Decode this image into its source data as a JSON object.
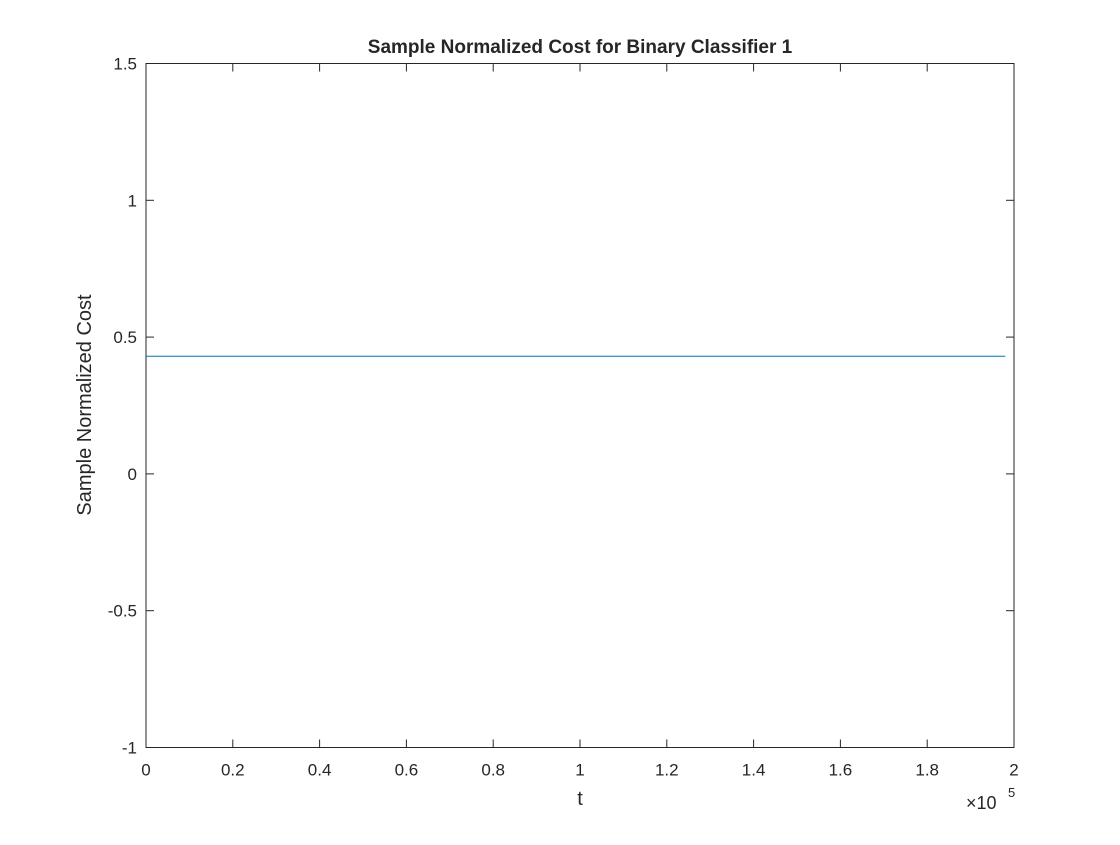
{
  "chart_data": {
    "type": "line",
    "title": "Sample Normalized Cost for Binary Classifier 1",
    "xlabel": "t",
    "ylabel": "Sample Normalized Cost",
    "x_exponent_base": "×10",
    "x_exponent_power": "5",
    "xlim": [
      0,
      200000
    ],
    "ylim": [
      -1,
      1.5
    ],
    "xticks": [
      0,
      20000,
      40000,
      60000,
      80000,
      100000,
      120000,
      140000,
      160000,
      180000,
      200000
    ],
    "xtick_labels": [
      "0",
      "0.2",
      "0.4",
      "0.6",
      "0.8",
      "1",
      "1.2",
      "1.4",
      "1.6",
      "1.8",
      "2"
    ],
    "yticks": [
      -1,
      -0.5,
      0,
      0.5,
      1,
      1.5
    ],
    "ytick_labels": [
      "-1",
      "-0.5",
      "0",
      "0.5",
      "1",
      "1.5"
    ],
    "grid": false,
    "series": [
      {
        "color": "#0072bd",
        "x": [
          0,
          198000
        ],
        "y": [
          0.43,
          0.43
        ]
      }
    ]
  }
}
